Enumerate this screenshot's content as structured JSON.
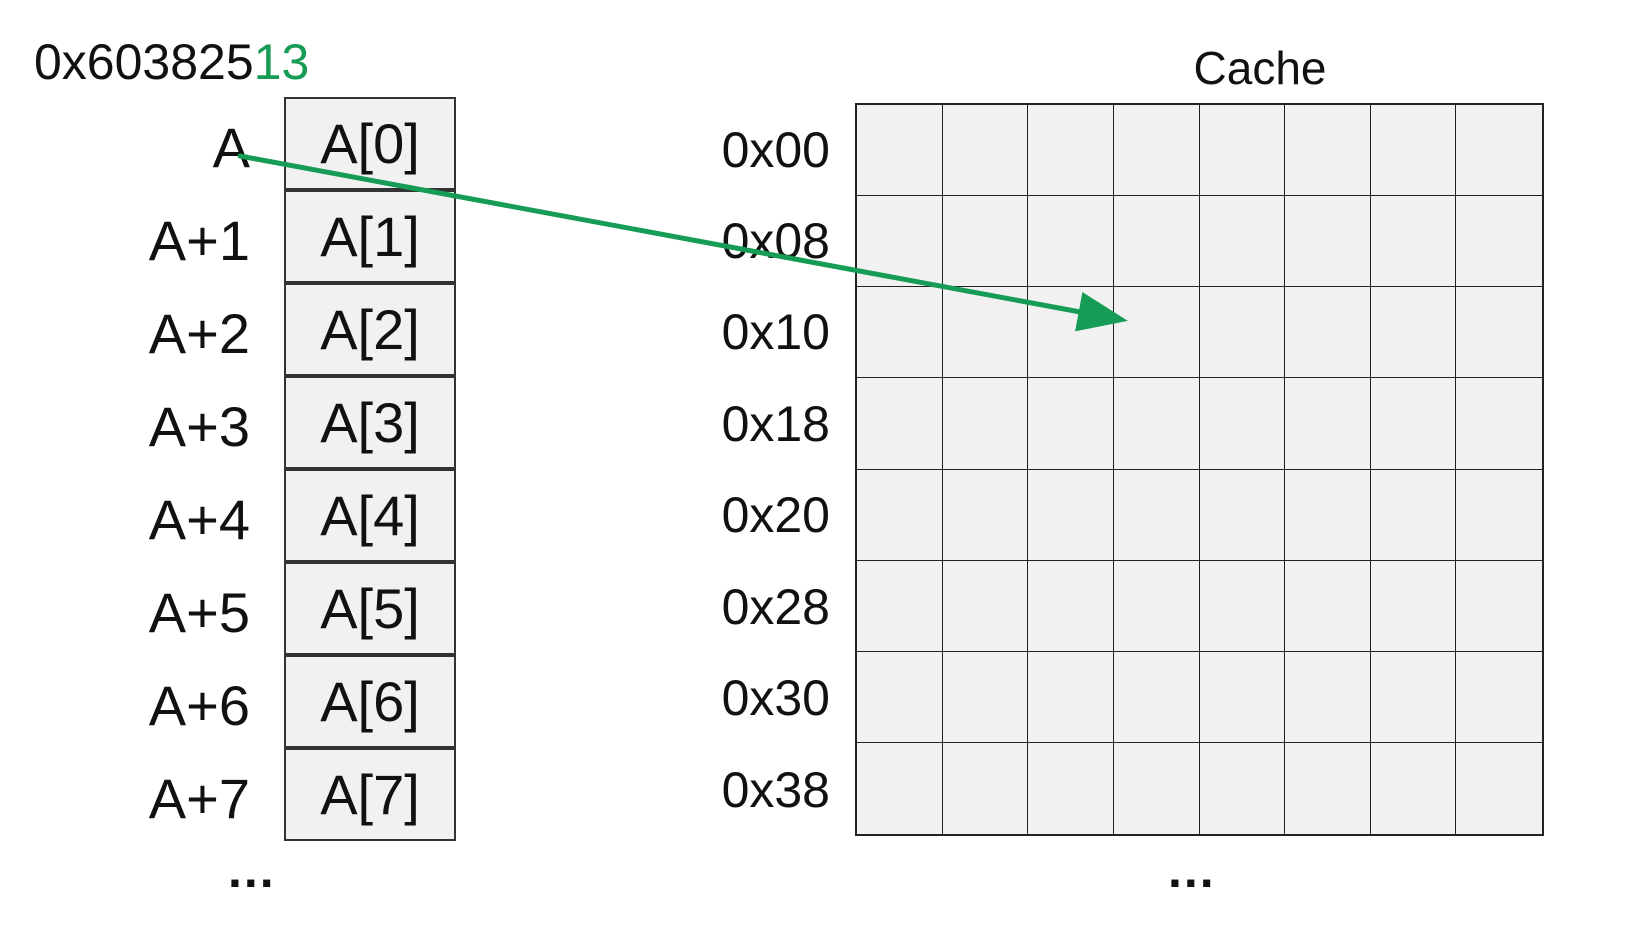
{
  "address": {
    "prefix": "0x603825",
    "highlight": "13",
    "highlight_color": "#169c55"
  },
  "array": {
    "labels": [
      "A",
      "A+1",
      "A+2",
      "A+3",
      "A+4",
      "A+5",
      "A+6",
      "A+7"
    ],
    "cells": [
      "A[0]",
      "A[1]",
      "A[2]",
      "A[3]",
      "A[4]",
      "A[5]",
      "A[6]",
      "A[7]"
    ],
    "ellipsis": "..."
  },
  "cache": {
    "title": "Cache",
    "row_labels": [
      "0x00",
      "0x08",
      "0x10",
      "0x18",
      "0x20",
      "0x28",
      "0x30",
      "0x38"
    ],
    "columns": 8,
    "rows": 8,
    "ellipsis": "..."
  },
  "arrow": {
    "from": "A",
    "to_row": "0x10",
    "to_column": 3,
    "color": "#169c55"
  }
}
